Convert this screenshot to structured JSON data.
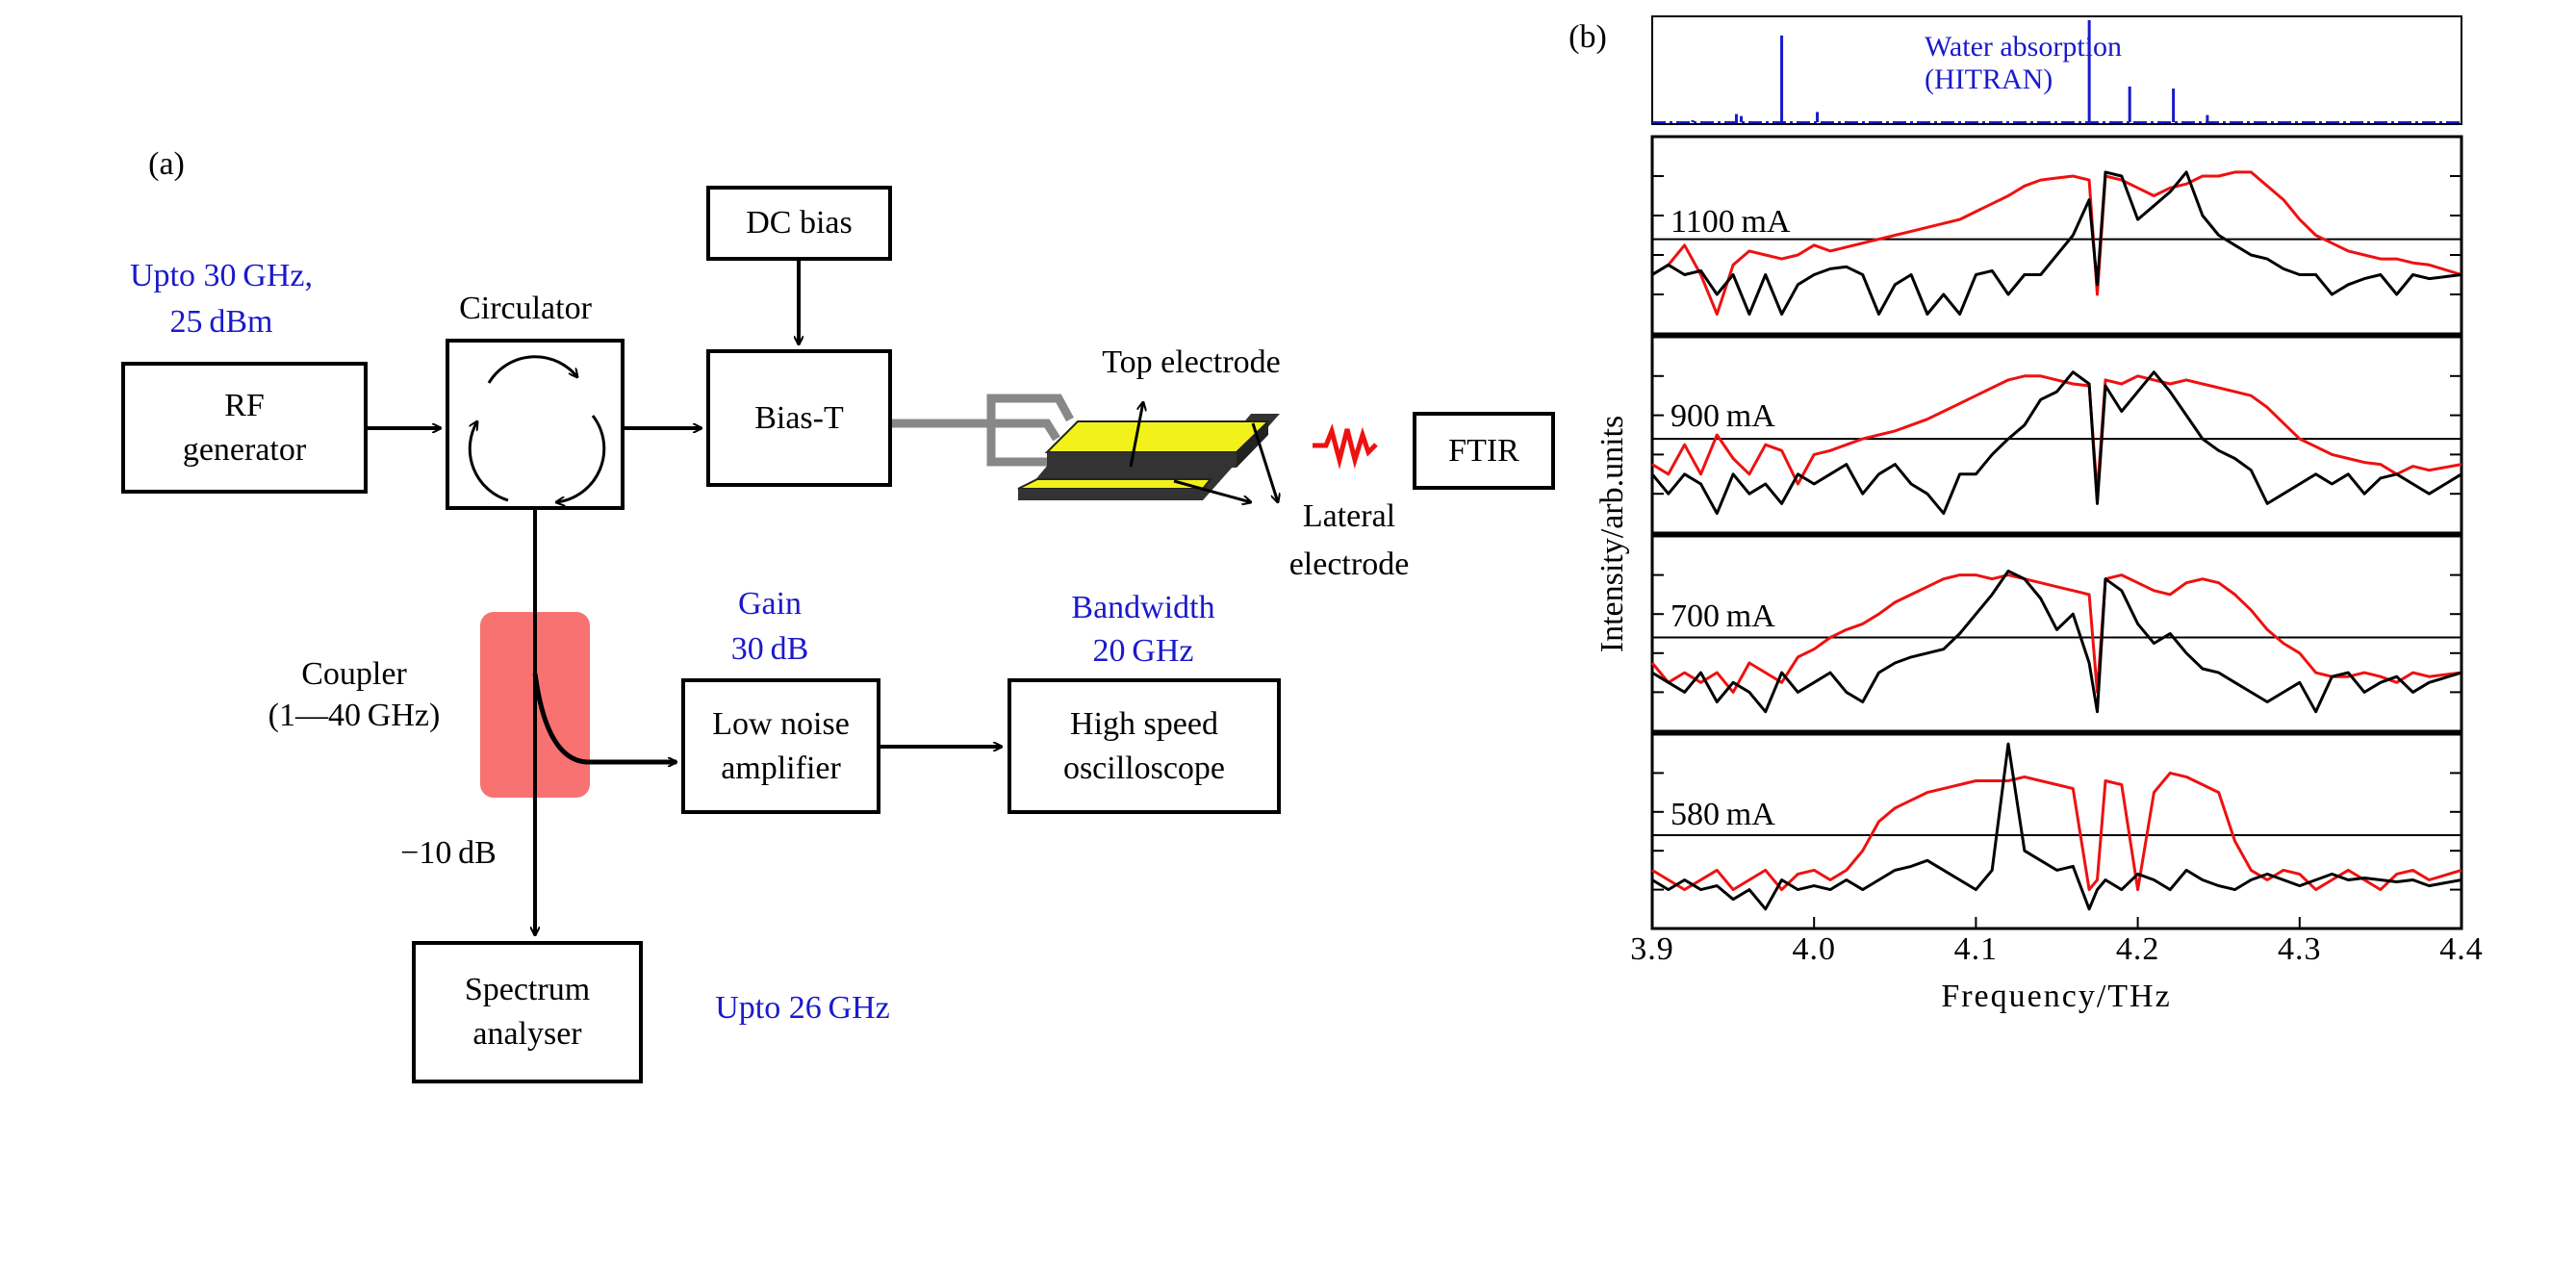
{
  "panel_a": {
    "label": "(a)",
    "rf_spec": [
      "Upto 30 GHz,",
      "25 dBm"
    ],
    "rf_generator": [
      "RF",
      "generator"
    ],
    "circulator_label": "Circulator",
    "dc_bias": "DC bias",
    "bias_t": "Bias-T",
    "top_electrode": "Top electrode",
    "lateral_electrode": [
      "Lateral",
      "electrode"
    ],
    "ftir": "FTIR",
    "coupler": [
      "Coupler",
      "(1—40 GHz)"
    ],
    "attenuation": "−10 dB",
    "gain": [
      "Gain",
      "30 dB"
    ],
    "bandwidth": [
      "Bandwidth",
      "20 GHz"
    ],
    "lna": [
      "Low noise",
      "amplifier"
    ],
    "oscilloscope": [
      "High speed",
      "oscilloscope"
    ],
    "spectrum_analyser": [
      "Spectrum",
      "analyser"
    ],
    "sa_spec": "Upto 26 GHz",
    "colors": {
      "annotation": "#1a1acc",
      "coupler": "#f87272",
      "device_top": "#f2f21a",
      "wave": "#ee1111"
    }
  },
  "chart_data": {
    "type": "line",
    "panel_label": "(b)",
    "xlabel": "Frequency/THz",
    "ylabel": "Intensity/arb.units",
    "xlim": [
      3.9,
      4.4
    ],
    "xticks": [
      "3.9",
      "4.0",
      "4.1",
      "4.2",
      "4.3",
      "4.4"
    ],
    "ylim": [
      0,
      1
    ],
    "water": {
      "label": [
        "Water absorption",
        "(HITRAN)"
      ],
      "color": "#1a1acc",
      "lines": [
        [
          3.925,
          0.02
        ],
        [
          3.952,
          0.08
        ],
        [
          3.955,
          0.06
        ],
        [
          3.98,
          0.85
        ],
        [
          4.002,
          0.1
        ],
        [
          4.17,
          1.0
        ],
        [
          4.195,
          0.35
        ],
        [
          4.222,
          0.33
        ],
        [
          4.243,
          0.07
        ]
      ]
    },
    "x": [
      3.9,
      3.91,
      3.92,
      3.93,
      3.94,
      3.95,
      3.96,
      3.97,
      3.98,
      3.99,
      4.0,
      4.01,
      4.02,
      4.03,
      4.04,
      4.05,
      4.06,
      4.07,
      4.08,
      4.09,
      4.1,
      4.11,
      4.12,
      4.13,
      4.14,
      4.15,
      4.16,
      4.17,
      4.175,
      4.18,
      4.19,
      4.2,
      4.21,
      4.22,
      4.23,
      4.24,
      4.25,
      4.26,
      4.27,
      4.28,
      4.29,
      4.3,
      4.31,
      4.32,
      4.33,
      4.34,
      4.35,
      4.36,
      4.37,
      4.38,
      4.4
    ],
    "reference_level": 0.48,
    "panels": [
      {
        "label": "1100 mA",
        "red": [
          0.3,
          0.35,
          0.45,
          0.3,
          0.1,
          0.35,
          0.42,
          0.4,
          0.38,
          0.4,
          0.45,
          0.42,
          0.44,
          0.46,
          0.48,
          0.5,
          0.52,
          0.54,
          0.56,
          0.58,
          0.62,
          0.66,
          0.7,
          0.75,
          0.78,
          0.79,
          0.8,
          0.78,
          0.2,
          0.8,
          0.78,
          0.74,
          0.7,
          0.74,
          0.76,
          0.8,
          0.8,
          0.82,
          0.82,
          0.75,
          0.68,
          0.58,
          0.5,
          0.46,
          0.42,
          0.4,
          0.38,
          0.38,
          0.36,
          0.35,
          0.3
        ],
        "black": [
          0.3,
          0.35,
          0.3,
          0.32,
          0.2,
          0.3,
          0.1,
          0.3,
          0.1,
          0.25,
          0.3,
          0.33,
          0.34,
          0.3,
          0.1,
          0.25,
          0.3,
          0.1,
          0.2,
          0.1,
          0.3,
          0.32,
          0.2,
          0.3,
          0.3,
          0.4,
          0.5,
          0.68,
          0.25,
          0.82,
          0.8,
          0.58,
          0.65,
          0.72,
          0.82,
          0.6,
          0.5,
          0.45,
          0.4,
          0.38,
          0.33,
          0.3,
          0.3,
          0.2,
          0.25,
          0.28,
          0.3,
          0.2,
          0.3,
          0.28,
          0.3
        ]
      },
      {
        "label": "900 mA",
        "red": [
          0.35,
          0.3,
          0.45,
          0.3,
          0.5,
          0.38,
          0.3,
          0.45,
          0.42,
          0.25,
          0.4,
          0.42,
          0.45,
          0.48,
          0.5,
          0.52,
          0.55,
          0.58,
          0.62,
          0.66,
          0.7,
          0.74,
          0.78,
          0.8,
          0.8,
          0.78,
          0.76,
          0.75,
          0.2,
          0.78,
          0.76,
          0.8,
          0.78,
          0.76,
          0.78,
          0.76,
          0.74,
          0.72,
          0.7,
          0.64,
          0.56,
          0.48,
          0.44,
          0.4,
          0.38,
          0.36,
          0.35,
          0.3,
          0.34,
          0.32,
          0.35
        ],
        "black": [
          0.3,
          0.2,
          0.3,
          0.25,
          0.1,
          0.3,
          0.2,
          0.25,
          0.15,
          0.3,
          0.25,
          0.3,
          0.35,
          0.2,
          0.3,
          0.35,
          0.25,
          0.2,
          0.1,
          0.3,
          0.3,
          0.4,
          0.48,
          0.55,
          0.68,
          0.72,
          0.82,
          0.76,
          0.15,
          0.75,
          0.62,
          0.72,
          0.82,
          0.72,
          0.6,
          0.48,
          0.42,
          0.38,
          0.32,
          0.15,
          0.2,
          0.25,
          0.3,
          0.25,
          0.3,
          0.2,
          0.28,
          0.3,
          0.25,
          0.2,
          0.3
        ]
      },
      {
        "label": "700 mA",
        "red": [
          0.35,
          0.25,
          0.3,
          0.25,
          0.3,
          0.2,
          0.35,
          0.3,
          0.25,
          0.38,
          0.42,
          0.48,
          0.52,
          0.55,
          0.6,
          0.66,
          0.7,
          0.74,
          0.78,
          0.8,
          0.8,
          0.78,
          0.8,
          0.78,
          0.76,
          0.74,
          0.72,
          0.7,
          0.2,
          0.78,
          0.8,
          0.76,
          0.72,
          0.7,
          0.76,
          0.78,
          0.76,
          0.7,
          0.62,
          0.52,
          0.45,
          0.4,
          0.3,
          0.28,
          0.28,
          0.3,
          0.28,
          0.25,
          0.3,
          0.28,
          0.3
        ],
        "black": [
          0.3,
          0.25,
          0.2,
          0.3,
          0.15,
          0.25,
          0.2,
          0.1,
          0.3,
          0.2,
          0.25,
          0.3,
          0.2,
          0.15,
          0.3,
          0.35,
          0.38,
          0.4,
          0.42,
          0.5,
          0.6,
          0.7,
          0.82,
          0.78,
          0.68,
          0.52,
          0.6,
          0.35,
          0.1,
          0.78,
          0.72,
          0.55,
          0.45,
          0.5,
          0.4,
          0.32,
          0.3,
          0.25,
          0.2,
          0.15,
          0.2,
          0.25,
          0.1,
          0.28,
          0.3,
          0.2,
          0.25,
          0.28,
          0.2,
          0.25,
          0.3
        ]
      },
      {
        "label": "580 mA",
        "red": [
          0.3,
          0.25,
          0.2,
          0.25,
          0.3,
          0.2,
          0.25,
          0.3,
          0.2,
          0.28,
          0.3,
          0.25,
          0.3,
          0.4,
          0.55,
          0.62,
          0.66,
          0.7,
          0.72,
          0.74,
          0.76,
          0.76,
          0.76,
          0.78,
          0.76,
          0.74,
          0.72,
          0.2,
          0.25,
          0.76,
          0.74,
          0.2,
          0.7,
          0.8,
          0.78,
          0.74,
          0.7,
          0.45,
          0.3,
          0.25,
          0.3,
          0.28,
          0.2,
          0.25,
          0.3,
          0.25,
          0.2,
          0.28,
          0.3,
          0.25,
          0.3
        ],
        "black": [
          0.25,
          0.2,
          0.25,
          0.2,
          0.22,
          0.15,
          0.2,
          0.1,
          0.25,
          0.2,
          0.22,
          0.2,
          0.25,
          0.2,
          0.25,
          0.3,
          0.32,
          0.35,
          0.3,
          0.25,
          0.2,
          0.3,
          0.95,
          0.4,
          0.35,
          0.3,
          0.32,
          0.1,
          0.2,
          0.25,
          0.2,
          0.28,
          0.25,
          0.2,
          0.3,
          0.25,
          0.22,
          0.2,
          0.25,
          0.28,
          0.25,
          0.22,
          0.25,
          0.28,
          0.25,
          0.26,
          0.25,
          0.24,
          0.25,
          0.22,
          0.25
        ]
      }
    ],
    "series_colors": {
      "red": "#ee1111",
      "black": "#000000"
    }
  }
}
